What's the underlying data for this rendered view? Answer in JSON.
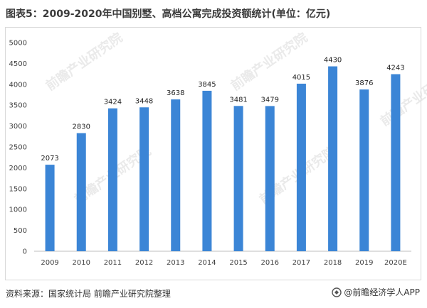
{
  "title": "图表5：2009-2020年中国别墅、高档公寓完成投资额统计(单位：亿元)",
  "source": "资料来源：国家统计局 前瞻产业研究院整理",
  "brand": "@前瞻经济学人APP",
  "watermark": "前瞻产业研究院",
  "colors": {
    "bar": "#3b85d6",
    "axis": "#bfbfbf",
    "text": "#404040"
  },
  "chart_data": {
    "type": "bar",
    "title": "图表5：2009-2020年中国别墅、高档公寓完成投资额统计(单位：亿元)",
    "categories": [
      "2009",
      "2010",
      "2011",
      "2012",
      "2013",
      "2014",
      "2015",
      "2016",
      "2017",
      "2018",
      "2019",
      "2020E"
    ],
    "values": [
      2073,
      2830,
      3424,
      3448,
      3638,
      3845,
      3481,
      3479,
      4015,
      4430,
      3876,
      4243
    ],
    "ylim": [
      0,
      5000
    ],
    "yticks": [
      0,
      500,
      1000,
      1500,
      2000,
      2500,
      3000,
      3500,
      4000,
      4500,
      5000
    ],
    "xlabel": "",
    "ylabel": "",
    "grid": false,
    "legend": "none"
  }
}
